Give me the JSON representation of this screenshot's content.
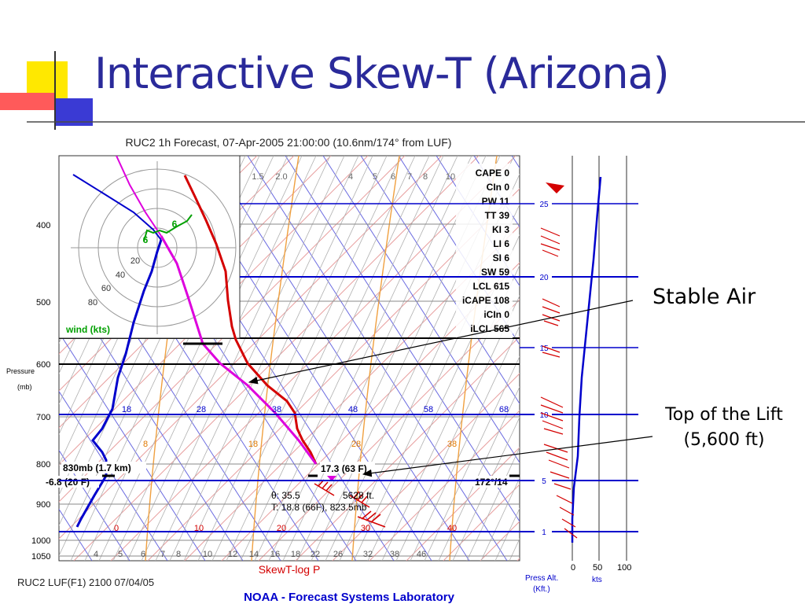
{
  "slide": {
    "title": "Interactive Skew-T (Arizona)",
    "callout_stable": "Stable Air",
    "callout_lift_line1": "Top of the Lift",
    "callout_lift_line2": "(5,600 ft)"
  },
  "chart_data": {
    "type": "skew-t",
    "title": "RUC2 1h Forecast, 07-Apr-2005 21:00:00 (10.6nm/174° from LUF)",
    "footer_left": "RUC2 LUF(F1) 2100 07/04/05",
    "footer_center": "SkewT-log P",
    "footer_org_a": "NOAA",
    "footer_org_b": " - Forecast Systems Laboratory",
    "ylabel_line1": "Pressure",
    "ylabel_line2": "(mb)",
    "pressure_ticks": [
      "400",
      "500",
      "600",
      "700",
      "800",
      "900",
      "1000",
      "1050"
    ],
    "temp_labels_blue": [
      "18",
      "28",
      "38",
      "48",
      "58",
      "68"
    ],
    "temp_labels_red": [
      "0",
      "10",
      "20",
      "30",
      "40"
    ],
    "bottom_mix_labels": [
      "4",
      "5",
      "6",
      "7",
      "8",
      "10",
      "12",
      "14",
      "16",
      "18",
      "22",
      "26",
      "32",
      "38",
      "46"
    ],
    "top_mix_labels": [
      "1.5",
      "2.0",
      "4",
      "5",
      "6",
      "7",
      "8",
      "10"
    ],
    "orange_labels": [
      "8",
      "18",
      "28",
      "38"
    ],
    "indices": [
      {
        "name": "CAPE",
        "value": "0"
      },
      {
        "name": "CIn",
        "value": "0"
      },
      {
        "name": "PW",
        "value": "11"
      },
      {
        "name": "TT",
        "value": "39"
      },
      {
        "name": "KI",
        "value": "3"
      },
      {
        "name": "LI",
        "value": "6"
      },
      {
        "name": "SI",
        "value": "6"
      },
      {
        "name": "SW",
        "value": "59"
      },
      {
        "name": "LCL",
        "value": "615"
      },
      {
        "name": "iCAPE",
        "value": "108"
      },
      {
        "name": "iCIn",
        "value": "0"
      },
      {
        "name": "iLCL",
        "value": "565"
      }
    ],
    "annotations": {
      "lift_level": "830mb (1.7 km)",
      "surface_dewpoint": "-6.8 (20 F)",
      "surface_temp": "17.3 (63 F)",
      "surface_wind": "172°/14",
      "theta": "θ: 35.5",
      "height": "5628 ft.",
      "t_line": "T: 18.8 (66F), 823.5mb"
    },
    "hodograph": {
      "rings": [
        "20",
        "40",
        "60",
        "80"
      ],
      "label": "wind (kts)",
      "points": [
        "6",
        "6"
      ]
    },
    "altitude_axis": {
      "label_line1": "Press Alt.",
      "label_line2": "(Kft.)",
      "ticks": [
        "25",
        "20",
        "15",
        "10",
        "5",
        "1"
      ]
    },
    "speed_axis": {
      "label": "kts",
      "ticks": [
        "0",
        "50",
        "100"
      ]
    },
    "series": [
      {
        "name": "Temperature",
        "color": "#d40000"
      },
      {
        "name": "Dewpoint",
        "color": "#0000cc"
      },
      {
        "name": "Parcel",
        "color": "#dd00dd"
      }
    ]
  }
}
